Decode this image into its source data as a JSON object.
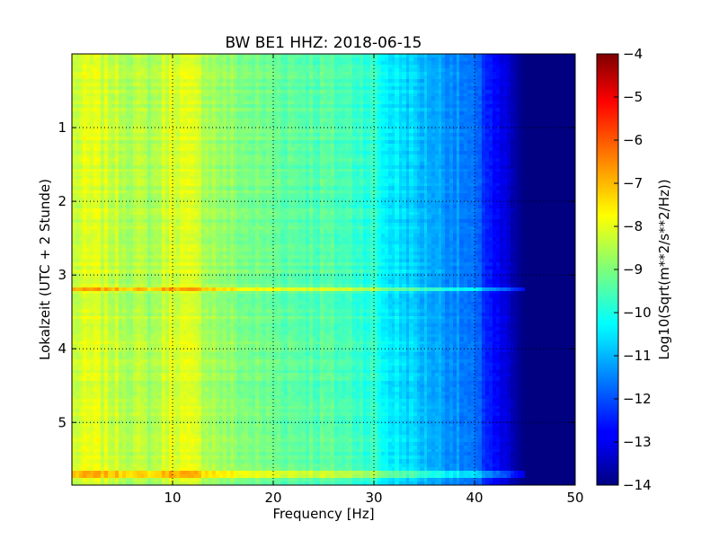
{
  "chart_data": {
    "type": "heatmap",
    "title": "BW BE1 HHZ: 2018-06-15",
    "xlabel": "Frequency [Hz]",
    "ylabel": "Lokalzeit (UTC + 2 Stunde)",
    "xlim": [
      0,
      50
    ],
    "ylim": [
      0,
      5.85
    ],
    "y_inverted": true,
    "grid": true,
    "x_ticks": [
      10,
      20,
      30,
      40,
      50
    ],
    "y_ticks": [
      1,
      2,
      3,
      4,
      5
    ],
    "colorbar": {
      "label": "Log10(Sqrt(m**2/s**2/Hz))",
      "colormap": "jet",
      "vmin": -14,
      "vmax": -4,
      "ticks": [
        -4,
        -5,
        -6,
        -7,
        -8,
        -9,
        -10,
        -11,
        -12,
        -13,
        -14
      ]
    },
    "spectrum_profile": {
      "frequency_hz": [
        0,
        2,
        5,
        8,
        10,
        12,
        15,
        18,
        20,
        25,
        28,
        30,
        31,
        33,
        35,
        38,
        40,
        41,
        42,
        43,
        44,
        45,
        50
      ],
      "log_amplitude": [
        -8.3,
        -8.1,
        -8.4,
        -8.6,
        -8.0,
        -8.2,
        -8.8,
        -9.1,
        -9.2,
        -9.4,
        -9.6,
        -9.8,
        -10.3,
        -10.6,
        -10.9,
        -11.3,
        -11.8,
        -12.2,
        -12.7,
        -13.2,
        -13.6,
        -14.0,
        -14.0
      ]
    },
    "bright_lines": [
      {
        "time": 3.2,
        "boost": 1.3,
        "fmax": 45
      },
      {
        "time": 5.7,
        "boost": 1.0,
        "fmax": 45
      }
    ]
  }
}
